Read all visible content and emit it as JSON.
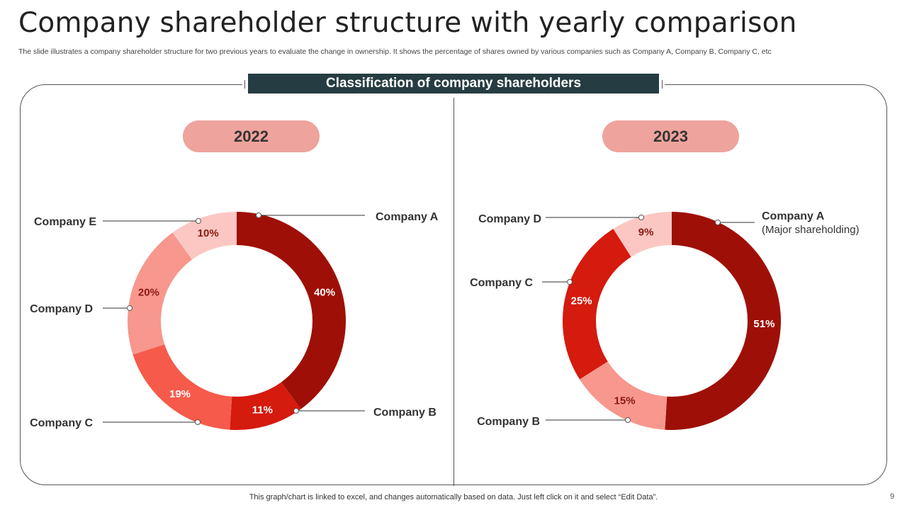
{
  "header": {
    "title": "Company shareholder structure with yearly comparison",
    "subtitle": "The slide illustrates a company shareholder structure for two previous years to  evaluate the change in ownership. It shows the percentage of shares owned by various companies such as Company A,  Company B,  Company C, etc"
  },
  "banner": {
    "label": "Classification of company shareholders"
  },
  "chart_data": [
    {
      "type": "pie",
      "title": "2022",
      "slices": [
        {
          "label": "Company A",
          "value": 40,
          "value_label": "40%",
          "color": "#9e1007"
        },
        {
          "label": "Company B",
          "value": 11,
          "value_label": "11%",
          "color": "#d51a0e"
        },
        {
          "label": "Company C",
          "value": 19,
          "value_label": "19%",
          "color": "#f65a4a"
        },
        {
          "label": "Company D",
          "value": 20,
          "value_label": "20%",
          "color": "#f7978e"
        },
        {
          "label": "Company E",
          "value": 10,
          "value_label": "10%",
          "color": "#fcc7c3"
        }
      ]
    },
    {
      "type": "pie",
      "title": "2023",
      "slices": [
        {
          "label": "Company A",
          "sublabel": "(Major shareholding)",
          "value": 51,
          "value_label": "51%",
          "color": "#9e1007"
        },
        {
          "label": "Company B",
          "value": 15,
          "value_label": "15%",
          "color": "#f7978e"
        },
        {
          "label": "Company C",
          "value": 25,
          "value_label": "25%",
          "color": "#d51a0e"
        },
        {
          "label": "Company D",
          "value": 9,
          "value_label": "9%",
          "color": "#fcc7c3"
        }
      ]
    }
  ],
  "footer": {
    "note": "This graph/chart is linked to excel,  and changes automatically based on data. Just left click on it and select “Edit Data”.",
    "page_number": "9"
  }
}
